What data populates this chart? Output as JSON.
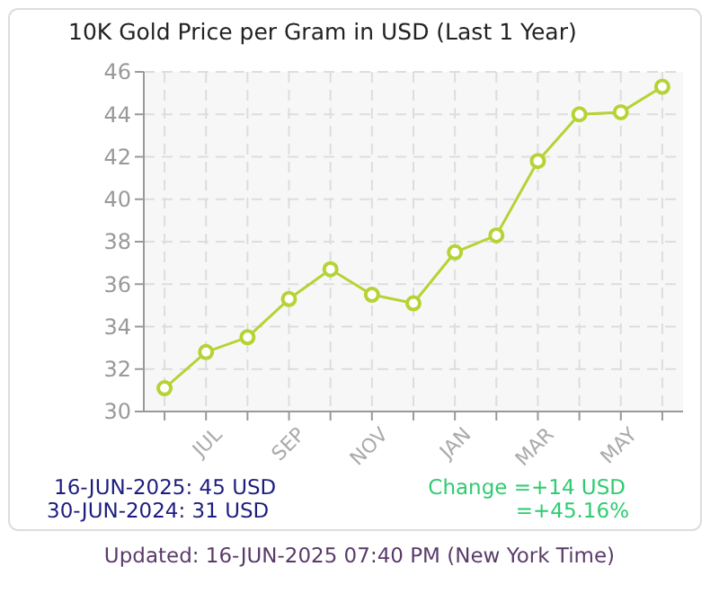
{
  "chart_data": {
    "type": "line",
    "title": "10K Gold Price per Gram in USD (Last 1 Year)",
    "categories": [
      null,
      "JUL",
      null,
      "SEP",
      null,
      "NOV",
      null,
      "JAN",
      null,
      "MAR",
      null,
      "MAY",
      null
    ],
    "series": [
      {
        "color": "#b5d334",
        "values": [
          31.1,
          32.8,
          33.5,
          35.3,
          36.7,
          35.5,
          35.1,
          37.5,
          38.3,
          41.8,
          44.0,
          44.1,
          45.3
        ]
      }
    ],
    "ylim": [
      30,
      46
    ],
    "yticks": [
      30,
      32,
      34,
      36,
      38,
      40,
      42,
      44,
      46
    ],
    "grid": true,
    "marker": "circle",
    "line_style": "solid",
    "annotations": [
      "16-JUN-2025: 45 USD",
      "30-JUN-2024: 31 USD",
      "Change =+14 USD",
      "=+45.16%",
      "Updated: 16-JUN-2025 07:40 PM (New York Time)"
    ]
  }
}
